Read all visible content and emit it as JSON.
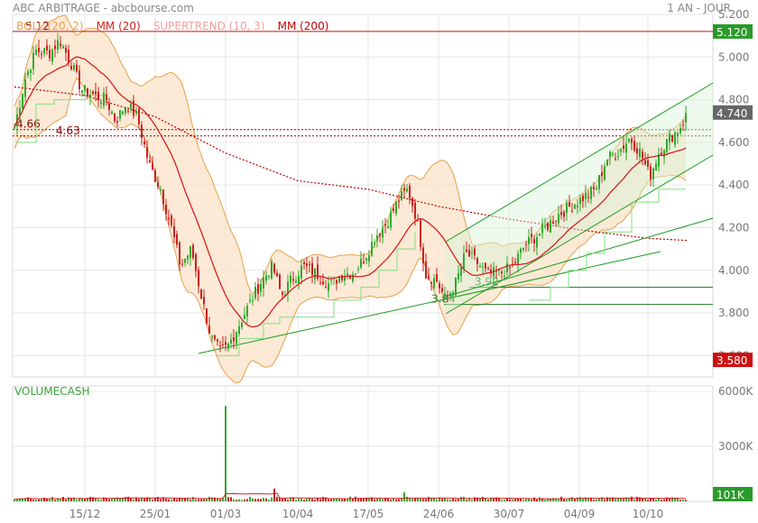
{
  "header": {
    "title": "ABC ARBITRAGE - abcbourse.com",
    "period": "1 AN - JOUR"
  },
  "legend": [
    {
      "label": "BOLL (20, 2)",
      "color": "#e8a04a"
    },
    {
      "label": "MM (20)",
      "color": "#d42020"
    },
    {
      "label": "SUPERTREND (10, 3)",
      "color": "#f0a0a0"
    },
    {
      "label": "MM (200)",
      "color": "#c00000"
    }
  ],
  "volume_label": "VOLUMECASH",
  "price_badges": {
    "top": "5.120",
    "last": "4.740",
    "low": "3.580",
    "volume_last": "101K"
  },
  "annotations": [
    {
      "text": "5.12",
      "value": 5.12
    },
    {
      "text": "4.66",
      "value": 4.66
    },
    {
      "text": "4.63",
      "value": 4.63
    },
    {
      "text": "3.92",
      "value": 3.92
    },
    {
      "text": "3.84",
      "value": 3.84
    }
  ],
  "colors": {
    "up": "#2eaa2e",
    "down": "#cc1f1f",
    "boll": "#e8a04a",
    "boll_fill": "#fbe3c8",
    "mm20": "#d42020",
    "mm200": "#c00000",
    "supertrend": "#7fe07f",
    "channel": "#1e9a1e",
    "badge_red": "#cc1111",
    "badge_green": "#2a9a2a"
  },
  "chart_data": [
    {
      "type": "line",
      "title": "ABC ARBITRAGE",
      "ylim": [
        3.5,
        5.2
      ],
      "y_ticks": [
        "5.200",
        "5.000",
        "4.800",
        "4.600",
        "4.400",
        "4.200",
        "4.000",
        "3.800",
        "3.600"
      ],
      "x_ticks": [
        "15/12",
        "25/01",
        "01/03",
        "10/04",
        "17/05",
        "24/06",
        "30/07",
        "04/09",
        "10/10"
      ],
      "series": [
        {
          "name": "MM (20)",
          "x": [
            "15/12",
            "25/01",
            "01/03",
            "10/04",
            "17/05",
            "24/06",
            "30/07",
            "04/09",
            "10/10"
          ],
          "values": [
            4.95,
            4.7,
            3.85,
            3.98,
            4.25,
            4.05,
            4.0,
            4.25,
            4.5
          ]
        },
        {
          "name": "MM (200)",
          "x": [
            "15/12",
            "25/01",
            "01/03",
            "10/04",
            "17/05",
            "24/06",
            "30/07",
            "04/09",
            "10/10"
          ],
          "values": [
            4.82,
            4.72,
            4.55,
            4.42,
            4.38,
            4.3,
            4.24,
            4.19,
            4.15
          ]
        }
      ]
    },
    {
      "type": "bar",
      "title": "VOLUMECASH",
      "y_ticks": [
        "6000K",
        "3000K"
      ],
      "x_ticks": [
        "15/12",
        "25/01",
        "01/03",
        "10/04",
        "17/05",
        "24/06",
        "30/07",
        "04/09",
        "10/10"
      ],
      "last_value": "101K",
      "peak_value_k": 5200
    }
  ]
}
